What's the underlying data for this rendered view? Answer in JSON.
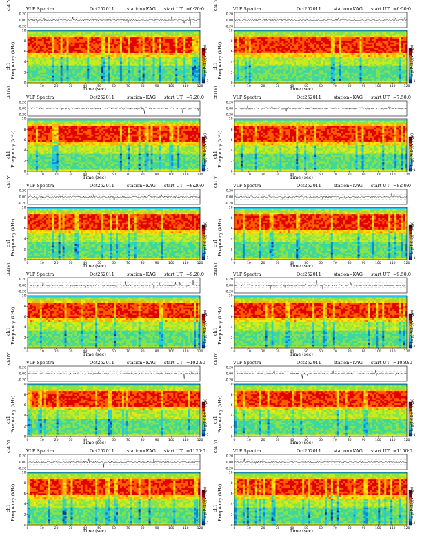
{
  "labels": {
    "title": "VLF Spectra",
    "date": "Oct252011",
    "station": "station=KAG",
    "start": "start  UT",
    "ch_axis": "ch1(V)",
    "freq_axis_1": "ch1",
    "freq_axis_2": "Frequency (kHz)",
    "time_axis": "Time (sec)",
    "colorbar_label": "log(PSD)(V²/Hz)"
  },
  "colors": {
    "spectrogram": [
      "#003a9a",
      "#0a8cd2",
      "#25c6e6",
      "#3fd79a",
      "#86e34a",
      "#c9ea1c",
      "#ffe40a",
      "#ffb000",
      "#ff5a00",
      "#e00000",
      "#900000"
    ]
  },
  "chart_data": [
    {
      "type": "heatmap",
      "title": "VLF Spectra",
      "start_time": "=6:20:0",
      "xlabel": "Time (sec)",
      "ylabel": "Frequency (kHz)",
      "xlim": [
        0,
        120
      ],
      "ylim": [
        0,
        10
      ],
      "xticks": [
        0,
        10,
        20,
        30,
        40,
        50,
        60,
        70,
        80,
        90,
        100,
        110,
        120
      ],
      "yticks": [
        0,
        2,
        4,
        6,
        8,
        10
      ],
      "ch_ylim": [
        -0.2,
        0.2
      ],
      "ch_yticks": [
        "0.20",
        "0.00",
        "-0.20"
      ],
      "colorbar": "log(PSD)(V²/Hz)",
      "colorbar_ticks": [
        "1",
        "-1"
      ]
    },
    {
      "type": "heatmap",
      "title": "VLF Spectra",
      "start_time": "=6:50:0",
      "xlabel": "Time (sec)",
      "ylabel": "Frequency (kHz)",
      "xlim": [
        0,
        120
      ],
      "ylim": [
        0,
        10
      ],
      "xticks": [
        0,
        10,
        20,
        30,
        40,
        50,
        60,
        70,
        80,
        90,
        100,
        110,
        120
      ],
      "yticks": [
        0,
        2,
        4,
        6,
        8,
        10
      ],
      "ch_ylim": [
        -0.2,
        0.2
      ],
      "ch_yticks": [
        "0.20",
        "0.00",
        "-0.20"
      ],
      "colorbar": "log(PSD)(V²/Hz)",
      "colorbar_ticks": [
        "1",
        "-1"
      ]
    },
    {
      "type": "heatmap",
      "title": "VLF Spectra",
      "start_time": "=7:20:0",
      "xlabel": "Time (sec)",
      "ylabel": "Frequency (kHz)",
      "xlim": [
        0,
        120
      ],
      "ylim": [
        0,
        10
      ],
      "xticks": [
        0,
        10,
        20,
        30,
        40,
        50,
        60,
        70,
        80,
        90,
        100,
        110,
        120
      ],
      "yticks": [
        0,
        2,
        4,
        6,
        8,
        10
      ],
      "ch_ylim": [
        -0.2,
        0.2
      ],
      "ch_yticks": [
        "0.20",
        "0.00",
        "-0.20"
      ],
      "colorbar": "log(PSD)(V²/Hz)",
      "colorbar_ticks": [
        "1",
        "-1"
      ]
    },
    {
      "type": "heatmap",
      "title": "VLF Spectra",
      "start_time": "=7:50:0",
      "xlabel": "Time (sec)",
      "ylabel": "Frequency (kHz)",
      "xlim": [
        0,
        120
      ],
      "ylim": [
        0,
        10
      ],
      "xticks": [
        0,
        10,
        20,
        30,
        40,
        50,
        60,
        70,
        80,
        90,
        100,
        110,
        120
      ],
      "yticks": [
        0,
        2,
        4,
        6,
        8,
        10
      ],
      "ch_ylim": [
        -0.2,
        0.2
      ],
      "ch_yticks": [
        "0.20",
        "0.00",
        "-0.20"
      ],
      "colorbar": "log(PSD)(V²/Hz)",
      "colorbar_ticks": [
        "1",
        "-1"
      ]
    },
    {
      "type": "heatmap",
      "title": "VLF Spectra",
      "start_time": "=8:20:0",
      "xlabel": "Time (sec)",
      "ylabel": "Frequency (kHz)",
      "xlim": [
        0,
        120
      ],
      "ylim": [
        0,
        10
      ],
      "xticks": [
        0,
        10,
        20,
        30,
        40,
        50,
        60,
        70,
        80,
        90,
        100,
        110,
        120
      ],
      "yticks": [
        0,
        2,
        4,
        6,
        8,
        10
      ],
      "ch_ylim": [
        -0.2,
        0.2
      ],
      "ch_yticks": [
        "0.20",
        "0.00",
        "-0.20"
      ],
      "colorbar": "log(PSD)(V²/Hz)",
      "colorbar_ticks": [
        "1",
        "-1"
      ]
    },
    {
      "type": "heatmap",
      "title": "VLF Spectra",
      "start_time": "=8:50:0",
      "xlabel": "Time (sec)",
      "ylabel": "Frequency (kHz)",
      "xlim": [
        0,
        120
      ],
      "ylim": [
        0,
        10
      ],
      "xticks": [
        0,
        10,
        20,
        30,
        40,
        50,
        60,
        70,
        80,
        90,
        100,
        110,
        120
      ],
      "yticks": [
        0,
        2,
        4,
        6,
        8,
        10
      ],
      "ch_ylim": [
        -0.2,
        0.2
      ],
      "ch_yticks": [
        "0.20",
        "0.00",
        "-0.20"
      ],
      "colorbar": "log(PSD)(V²/Hz)",
      "colorbar_ticks": [
        "1",
        "-1"
      ]
    },
    {
      "type": "heatmap",
      "title": "VLF Spectra",
      "start_time": "=9:20:0",
      "xlabel": "Time (sec)",
      "ylabel": "Frequency (kHz)",
      "xlim": [
        0,
        120
      ],
      "ylim": [
        0,
        10
      ],
      "xticks": [
        0,
        10,
        20,
        30,
        40,
        50,
        60,
        70,
        80,
        90,
        100,
        110,
        120
      ],
      "yticks": [
        0,
        2,
        4,
        6,
        8,
        10
      ],
      "ch_ylim": [
        -0.2,
        0.2
      ],
      "ch_yticks": [
        "0.20",
        "0.00",
        "-0.20"
      ],
      "colorbar": "log(PSD)(V²/Hz)",
      "colorbar_ticks": [
        "1",
        "-1"
      ]
    },
    {
      "type": "heatmap",
      "title": "VLF Spectra",
      "start_time": "=9:50:0",
      "xlabel": "Time (sec)",
      "ylabel": "Frequency (kHz)",
      "xlim": [
        0,
        120
      ],
      "ylim": [
        0,
        10
      ],
      "xticks": [
        0,
        10,
        20,
        30,
        40,
        50,
        60,
        70,
        80,
        90,
        100,
        110,
        120
      ],
      "yticks": [
        0,
        2,
        4,
        6,
        8,
        10
      ],
      "ch_ylim": [
        -0.2,
        0.2
      ],
      "ch_yticks": [
        "0.20",
        "0.00",
        "-0.20"
      ],
      "colorbar": "log(PSD)(V²/Hz)",
      "colorbar_ticks": [
        "1",
        "-1"
      ]
    },
    {
      "type": "heatmap",
      "title": "VLF Spectra",
      "start_time": "=1020:0",
      "xlabel": "Time (sec)",
      "ylabel": "Frequency (kHz)",
      "xlim": [
        0,
        120
      ],
      "ylim": [
        0,
        10
      ],
      "xticks": [
        0,
        10,
        20,
        30,
        40,
        50,
        60,
        70,
        80,
        90,
        100,
        110,
        120
      ],
      "yticks": [
        0,
        2,
        4,
        6,
        8,
        10
      ],
      "ch_ylim": [
        -0.2,
        0.2
      ],
      "ch_yticks": [
        "0.20",
        "0.00",
        "-0.20"
      ],
      "colorbar": "log(PSD)(V²/Hz)",
      "colorbar_ticks": [
        "1",
        "-1"
      ]
    },
    {
      "type": "heatmap",
      "title": "VLF Spectra",
      "start_time": "=1050:0",
      "xlabel": "Time (sec)",
      "ylabel": "Frequency (kHz)",
      "xlim": [
        0,
        120
      ],
      "ylim": [
        0,
        10
      ],
      "xticks": [
        0,
        10,
        20,
        30,
        40,
        50,
        60,
        70,
        80,
        90,
        100,
        110,
        120
      ],
      "yticks": [
        0,
        2,
        4,
        6,
        8,
        10
      ],
      "ch_ylim": [
        -0.2,
        0.2
      ],
      "ch_yticks": [
        "0.20",
        "0.00",
        "-0.20"
      ],
      "colorbar": "log(PSD)(V²/Hz)",
      "colorbar_ticks": [
        "1",
        "-1"
      ]
    },
    {
      "type": "heatmap",
      "title": "VLF Spectra",
      "start_time": "=1120:0",
      "xlabel": "Time (sec)",
      "ylabel": "Frequency (kHz)",
      "xlim": [
        0,
        120
      ],
      "ylim": [
        0,
        10
      ],
      "xticks": [
        0,
        10,
        20,
        30,
        40,
        50,
        60,
        70,
        80,
        90,
        100,
        110,
        120
      ],
      "yticks": [
        0,
        2,
        4,
        6,
        8,
        10
      ],
      "ch_ylim": [
        -0.2,
        0.2
      ],
      "ch_yticks": [
        "0.20",
        "0.00",
        "-0.20"
      ],
      "colorbar": "log(PSD)(V²/Hz)",
      "colorbar_ticks": [
        "1",
        "-1"
      ]
    },
    {
      "type": "heatmap",
      "title": "VLF Spectra",
      "start_time": "=1150:0",
      "xlabel": "Time (sec)",
      "ylabel": "Frequency (kHz)",
      "xlim": [
        0,
        120
      ],
      "ylim": [
        0,
        10
      ],
      "xticks": [
        0,
        10,
        20,
        30,
        40,
        50,
        60,
        70,
        80,
        90,
        100,
        110,
        120
      ],
      "yticks": [
        0,
        2,
        4,
        6,
        8,
        10
      ],
      "ch_ylim": [
        -0.2,
        0.2
      ],
      "ch_yticks": [
        "0.20",
        "0.00",
        "-0.20"
      ],
      "colorbar": "log(PSD)(V²/Hz)",
      "colorbar_ticks": [
        "1",
        "-1"
      ]
    }
  ]
}
